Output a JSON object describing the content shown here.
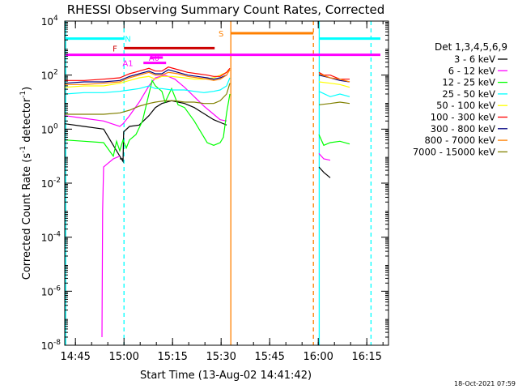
{
  "chart_data": {
    "type": "line",
    "title": "RHESSI Observing Summary Count Rates, Corrected",
    "xlabel": "Start Time (13-Aug-02 14:41:42)",
    "ylabel_main": "Corrected Count Rate (s",
    "ylabel_sup1": "-1",
    "ylabel_mid": " detector",
    "ylabel_sup2": "-1",
    "ylabel_end": ")",
    "x_unit": "minutes since 14:41:42",
    "xlim": [
      0,
      100
    ],
    "ylog": true,
    "ylim_exp": [
      -8,
      4
    ],
    "x_ticks": [
      {
        "t": 3.3,
        "label": "14:45"
      },
      {
        "t": 18.3,
        "label": "15:00"
      },
      {
        "t": 33.3,
        "label": "15:15"
      },
      {
        "t": 48.3,
        "label": "15:30"
      },
      {
        "t": 63.3,
        "label": "15:45"
      },
      {
        "t": 78.3,
        "label": "16:00"
      },
      {
        "t": 93.3,
        "label": "16:15"
      }
    ],
    "y_ticks": [
      {
        "exp": 4,
        "label": "10",
        "sup": "4"
      },
      {
        "exp": 2,
        "label": "10",
        "sup": "2"
      },
      {
        "exp": 0,
        "label": "10",
        "sup": "0"
      },
      {
        "exp": -2,
        "label": "10",
        "sup": "-2"
      },
      {
        "exp": -4,
        "label": "10",
        "sup": "-4"
      },
      {
        "exp": -6,
        "label": "10",
        "sup": "-6"
      },
      {
        "exp": -8,
        "label": "10",
        "sup": "-8"
      }
    ],
    "legend_title": "Det 1,3,4,5,6,9",
    "legend_position": "right",
    "series": [
      {
        "name": "3 - 6 keV",
        "color": "#000000",
        "points": [
          [
            0,
            0.2
          ],
          [
            6,
            0.1
          ],
          [
            12,
            0
          ],
          [
            17,
            -1
          ],
          [
            18,
            -1.2
          ],
          [
            18.2,
            -0.1
          ],
          [
            20,
            0.1
          ],
          [
            23,
            0.15
          ],
          [
            26,
            0.5
          ],
          [
            28,
            0.8
          ],
          [
            30,
            0.95
          ],
          [
            33,
            1.05
          ],
          [
            37,
            0.95
          ],
          [
            40,
            0.8
          ],
          [
            42,
            0.65
          ],
          [
            44,
            0.5
          ],
          [
            46,
            0.35
          ],
          [
            48,
            0.25
          ],
          [
            50,
            0.15
          ]
        ],
        "points2": [
          [
            78.5,
            -1.4
          ],
          [
            80,
            -1.6
          ],
          [
            82,
            -1.8
          ]
        ],
        "points3": [
          [
            17,
            -1.1
          ],
          [
            18,
            -1.1
          ]
        ]
      },
      {
        "name": "6 - 12 keV",
        "color": "#ff00ff",
        "points": [
          [
            0,
            0.5
          ],
          [
            6,
            0.4
          ],
          [
            12,
            0.3
          ],
          [
            17,
            0.1
          ],
          [
            18,
            0.2
          ],
          [
            20,
            0.5
          ],
          [
            23,
            1.0
          ],
          [
            26,
            1.6
          ],
          [
            28,
            1.9
          ],
          [
            31,
            2.0
          ],
          [
            34,
            1.85
          ],
          [
            37,
            1.55
          ],
          [
            40,
            1.2
          ],
          [
            43,
            0.85
          ],
          [
            46,
            0.55
          ],
          [
            48,
            0.35
          ],
          [
            50,
            0.3
          ]
        ],
        "points2": [
          [
            78.5,
            -0.9
          ],
          [
            80,
            -1.1
          ],
          [
            82,
            -1.15
          ]
        ],
        "points3": [
          [
            11.5,
            -7.7
          ],
          [
            11.7,
            -3
          ],
          [
            12,
            -1.4
          ],
          [
            13,
            -1.3
          ],
          [
            15,
            -1.1
          ],
          [
            17,
            -1.0
          ]
        ]
      },
      {
        "name": "12 - 25 keV",
        "color": "#00ff00",
        "points": [
          [
            0,
            -0.4
          ],
          [
            6,
            -0.45
          ],
          [
            12,
            -0.5
          ],
          [
            15,
            -1.0
          ],
          [
            16,
            -0.45
          ],
          [
            17,
            -0.8
          ],
          [
            18,
            -0.4
          ],
          [
            19,
            -0.7
          ],
          [
            20,
            -0.4
          ],
          [
            22,
            -0.2
          ],
          [
            24,
            0.3
          ],
          [
            26,
            1.3
          ],
          [
            27,
            1.8
          ],
          [
            28,
            1.6
          ],
          [
            30,
            1.4
          ],
          [
            31,
            1.0
          ],
          [
            33,
            1.5
          ],
          [
            35,
            0.9
          ],
          [
            37,
            0.8
          ],
          [
            40,
            0.3
          ],
          [
            42,
            -0.1
          ],
          [
            44,
            -0.5
          ],
          [
            46,
            -0.6
          ],
          [
            48,
            -0.5
          ],
          [
            49,
            -0.3
          ],
          [
            50,
            0.6
          ],
          [
            51,
            1.3
          ]
        ],
        "points2": [
          [
            78.5,
            -0.2
          ],
          [
            80,
            -0.6
          ],
          [
            82,
            -0.5
          ],
          [
            85,
            -0.45
          ],
          [
            88,
            -0.55
          ]
        ],
        "points3": []
      },
      {
        "name": "25 - 50 keV",
        "color": "#00ffff",
        "points": [
          [
            0,
            1.3
          ],
          [
            6,
            1.35
          ],
          [
            12,
            1.35
          ],
          [
            17,
            1.4
          ],
          [
            20,
            1.45
          ],
          [
            23,
            1.5
          ],
          [
            26,
            1.6
          ],
          [
            28,
            1.5
          ],
          [
            30,
            1.5
          ],
          [
            33,
            1.45
          ],
          [
            37,
            1.45
          ],
          [
            40,
            1.4
          ],
          [
            43,
            1.35
          ],
          [
            46,
            1.4
          ],
          [
            48,
            1.45
          ],
          [
            50,
            1.6
          ],
          [
            51,
            1.9
          ]
        ],
        "points2": [
          [
            78.5,
            1.4
          ],
          [
            82,
            1.2
          ],
          [
            85,
            1.3
          ],
          [
            88,
            1.2
          ]
        ],
        "points3": []
      },
      {
        "name": "50 - 100 keV",
        "color": "#ffff00",
        "points": [
          [
            0,
            1.55
          ],
          [
            6,
            1.6
          ],
          [
            12,
            1.6
          ],
          [
            17,
            1.7
          ],
          [
            20,
            1.8
          ],
          [
            23,
            1.9
          ],
          [
            26,
            1.95
          ],
          [
            28,
            1.85
          ],
          [
            30,
            1.95
          ],
          [
            33,
            1.95
          ],
          [
            37,
            1.9
          ],
          [
            40,
            1.85
          ],
          [
            43,
            1.85
          ],
          [
            46,
            1.9
          ],
          [
            48,
            2.0
          ],
          [
            50,
            2.1
          ],
          [
            51,
            2.2
          ]
        ],
        "points2": [
          [
            78.5,
            1.75
          ],
          [
            82,
            1.7
          ],
          [
            85,
            1.65
          ],
          [
            88,
            1.55
          ]
        ],
        "points3": []
      },
      {
        "name": "100 - 300 keV",
        "color": "#ff0000",
        "points": [
          [
            0,
            1.8
          ],
          [
            6,
            1.8
          ],
          [
            12,
            1.85
          ],
          [
            17,
            1.9
          ],
          [
            20,
            2.05
          ],
          [
            23,
            2.15
          ],
          [
            26,
            2.25
          ],
          [
            28,
            2.15
          ],
          [
            30,
            2.15
          ],
          [
            32,
            2.3
          ],
          [
            35,
            2.2
          ],
          [
            38,
            2.1
          ],
          [
            41,
            2.05
          ],
          [
            44,
            2.0
          ],
          [
            46,
            1.95
          ],
          [
            48,
            1.95
          ],
          [
            50,
            2.1
          ],
          [
            51,
            2.25
          ]
        ],
        "points2": [
          [
            78.5,
            2.1
          ],
          [
            80,
            2.0
          ],
          [
            82,
            2.0
          ],
          [
            85,
            1.85
          ],
          [
            88,
            1.85
          ]
        ],
        "points3": []
      },
      {
        "name": "300 - 800 keV",
        "color": "#000080",
        "points": [
          [
            0,
            1.7
          ],
          [
            6,
            1.75
          ],
          [
            12,
            1.75
          ],
          [
            17,
            1.8
          ],
          [
            20,
            1.95
          ],
          [
            23,
            2.05
          ],
          [
            26,
            2.15
          ],
          [
            28,
            2.05
          ],
          [
            30,
            2.05
          ],
          [
            32,
            2.2
          ],
          [
            35,
            2.1
          ],
          [
            38,
            2.0
          ],
          [
            41,
            1.95
          ],
          [
            44,
            1.9
          ],
          [
            46,
            1.85
          ],
          [
            48,
            1.9
          ],
          [
            50,
            2.0
          ]
        ],
        "points2": [
          [
            78.5,
            2.0
          ],
          [
            82,
            1.9
          ],
          [
            85,
            1.8
          ],
          [
            88,
            1.75
          ]
        ],
        "points3": []
      },
      {
        "name": "800 - 7000 keV",
        "color": "#ff8000",
        "points": [
          [
            0,
            1.65
          ],
          [
            6,
            1.65
          ],
          [
            12,
            1.7
          ],
          [
            17,
            1.75
          ],
          [
            20,
            1.9
          ],
          [
            23,
            2.0
          ],
          [
            26,
            2.1
          ],
          [
            28,
            2.0
          ],
          [
            30,
            2.0
          ],
          [
            32,
            2.1
          ],
          [
            35,
            2.05
          ],
          [
            38,
            1.95
          ],
          [
            41,
            1.9
          ],
          [
            44,
            1.85
          ],
          [
            46,
            1.8
          ],
          [
            48,
            1.85
          ],
          [
            50,
            2.0
          ],
          [
            51,
            2.2
          ]
        ],
        "points2": [
          [
            78.5,
            2.05
          ],
          [
            82,
            1.9
          ],
          [
            85,
            1.85
          ],
          [
            88,
            1.75
          ]
        ],
        "points3": []
      },
      {
        "name": "7000 - 15000 keV",
        "color": "#808000",
        "points": [
          [
            0,
            0.55
          ],
          [
            6,
            0.55
          ],
          [
            12,
            0.55
          ],
          [
            17,
            0.6
          ],
          [
            20,
            0.7
          ],
          [
            23,
            0.85
          ],
          [
            26,
            0.95
          ],
          [
            28,
            1.0
          ],
          [
            31,
            1.05
          ],
          [
            34,
            1.05
          ],
          [
            37,
            1.0
          ],
          [
            40,
            1.0
          ],
          [
            43,
            0.95
          ],
          [
            46,
            0.95
          ],
          [
            48,
            1.05
          ],
          [
            50,
            1.3
          ],
          [
            51,
            1.7
          ]
        ],
        "points2": [
          [
            78.5,
            0.9
          ],
          [
            82,
            0.95
          ],
          [
            85,
            1.0
          ],
          [
            88,
            0.95
          ]
        ],
        "points3": []
      }
    ],
    "vlines": [
      {
        "t": 0.3,
        "color": "#00ffff",
        "style": "solid"
      },
      {
        "t": 18.3,
        "color": "#00ffff",
        "style": "dashed"
      },
      {
        "t": 51.3,
        "color": "#ff8000",
        "style": "solid"
      },
      {
        "t": 76.8,
        "color": "#ff8000",
        "style": "dashed"
      },
      {
        "t": 78.6,
        "color": "#00ffff",
        "style": "solid"
      },
      {
        "t": 94.6,
        "color": "#00ffff",
        "style": "dashed"
      }
    ],
    "state_bars": [
      {
        "label": "N",
        "color": "#00ffff",
        "y_exp": 3.35,
        "segments": [
          [
            0.3,
            18.3
          ],
          [
            78.6,
            97.5
          ]
        ],
        "label_t": 19.5
      },
      {
        "label": "S",
        "color": "#ff8000",
        "y_exp": 3.55,
        "segments": [
          [
            51.3,
            76.8
          ]
        ],
        "label_t": 48.3
      },
      {
        "label": "F",
        "color": "#cc0000",
        "y_exp": 3.0,
        "segments": [
          [
            18.3,
            46.3
          ]
        ],
        "label_t": 15.5
      },
      {
        "label": "",
        "color": "#ff00ff",
        "y_exp": 2.75,
        "segments": [
          [
            0.3,
            97.5
          ]
        ],
        "label_t": 0
      },
      {
        "label": "A0",
        "color": "#ff00ff",
        "y_exp": 2.65,
        "segments": [
          [
            26.3,
            30.3
          ]
        ],
        "label_t": 27.6
      },
      {
        "label": "A1",
        "color": "#ff00ff",
        "y_exp": 2.45,
        "segments": [
          [
            24.3,
            31.3
          ]
        ],
        "label_t": 19.5
      }
    ],
    "footer_date": "18-Oct-2021 07:59"
  }
}
